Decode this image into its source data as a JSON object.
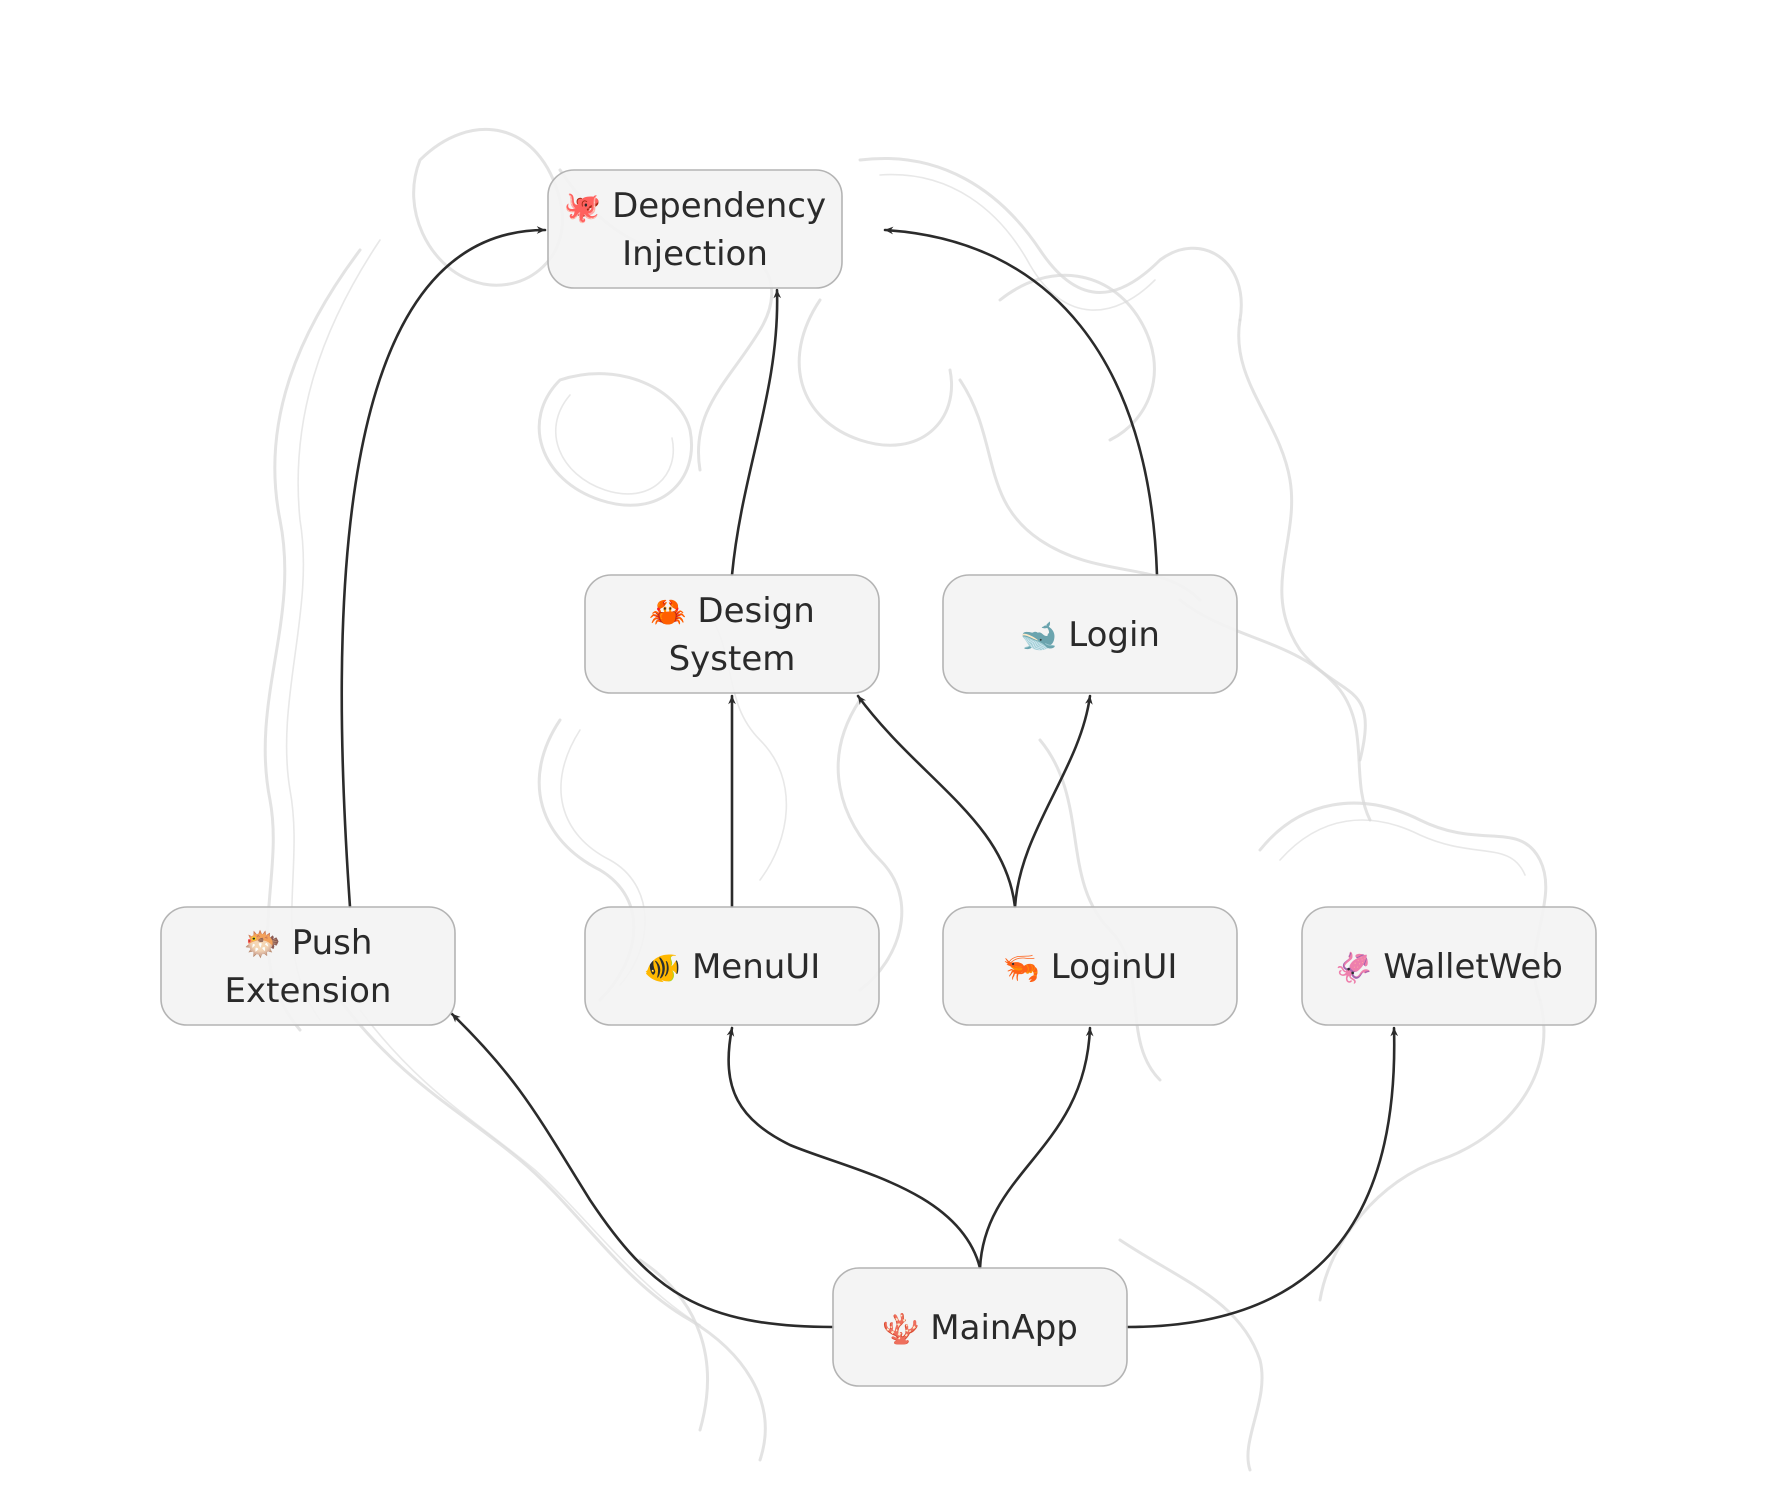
{
  "nodes": [
    {
      "id": "di",
      "icon": "octopus-icon",
      "glyph": "🐙",
      "lines": [
        "Dependency",
        "Injection"
      ]
    },
    {
      "id": "ds",
      "icon": "crab-icon",
      "glyph": "🦀",
      "lines": [
        "Design",
        "System"
      ]
    },
    {
      "id": "login",
      "icon": "whale-icon",
      "glyph": "🐋",
      "lines": [
        "Login"
      ]
    },
    {
      "id": "push",
      "icon": "blowfish-icon",
      "glyph": "🐡",
      "lines": [
        "Push",
        "Extension"
      ]
    },
    {
      "id": "menu",
      "icon": "tropical-fish-icon",
      "glyph": "🐠",
      "lines": [
        "MenuUI"
      ]
    },
    {
      "id": "loginui",
      "icon": "shrimp-icon",
      "glyph": "🦐",
      "lines": [
        "LoginUI"
      ]
    },
    {
      "id": "wallet",
      "icon": "squid-icon",
      "glyph": "🦑",
      "lines": [
        "WalletWeb"
      ]
    },
    {
      "id": "main",
      "icon": "coral-icon",
      "glyph": "🪸",
      "lines": [
        "MainApp"
      ]
    }
  ],
  "edges": [
    {
      "from": "push",
      "to": "di"
    },
    {
      "from": "ds",
      "to": "di"
    },
    {
      "from": "login",
      "to": "di"
    },
    {
      "from": "menu",
      "to": "ds"
    },
    {
      "from": "loginui",
      "to": "ds"
    },
    {
      "from": "loginui",
      "to": "login"
    },
    {
      "from": "main",
      "to": "push"
    },
    {
      "from": "main",
      "to": "menu"
    },
    {
      "from": "main",
      "to": "loginui"
    },
    {
      "from": "main",
      "to": "wallet"
    }
  ],
  "colors": {
    "node_fill": "#f3f3f3",
    "node_stroke": "#b4b4b4",
    "edge": "#2b2b2b",
    "text": "#2a2a2a",
    "texture": "#d9d9d9",
    "background": "#ffffff"
  }
}
